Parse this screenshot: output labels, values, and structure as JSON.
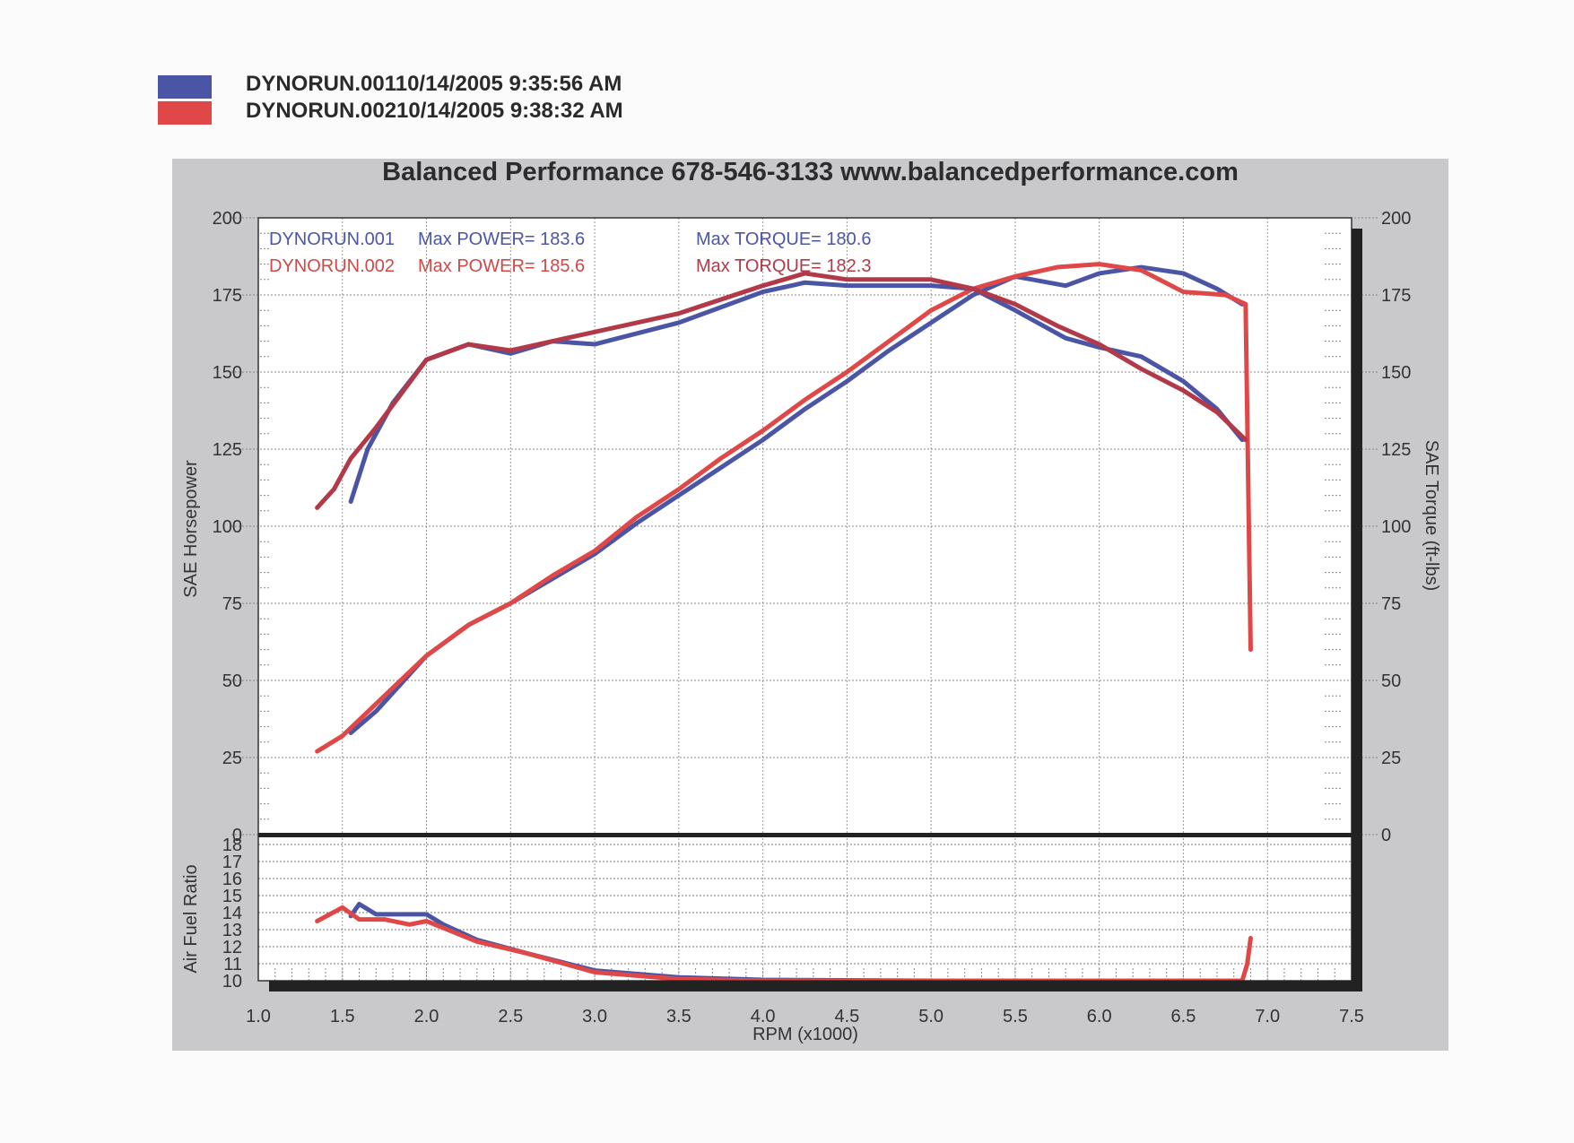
{
  "legend": [
    {
      "label": "DYNORUN.00110/14/2005 9:35:56 AM",
      "color": "#4b55a6"
    },
    {
      "label": "DYNORUN.00210/14/2005 9:38:32 AM",
      "color": "#e04848"
    }
  ],
  "title": "Balanced Performance 678-546-3133 www.balancedperformance.com",
  "annotations": {
    "run1_name": "DYNORUN.001",
    "run1_power": "Max POWER= 183.6",
    "run1_torque": "Max TORQUE= 180.6",
    "run2_name": "DYNORUN.002",
    "run2_power": "Max POWER= 185.6",
    "run2_torque": "Max TORQUE= 182.3"
  },
  "axes": {
    "left_label": "SAE Horsepower",
    "right_label": "SAE Torque (ft-lbs)",
    "afr_label": "Air Fuel Ratio",
    "x_label": "RPM (x1000)"
  },
  "chart_data": [
    {
      "type": "line",
      "title": "Balanced Performance 678-546-3133 www.balancedperformance.com",
      "xlabel": "RPM (x1000)",
      "ylabel": "SAE Horsepower",
      "y2label": "SAE Torque (ft-lbs)",
      "xlim": [
        1.0,
        7.5
      ],
      "ylim": [
        0,
        200
      ],
      "x_ticks": [
        "1.0",
        "1.5",
        "2.0",
        "2.5",
        "3.0",
        "3.5",
        "4.0",
        "4.5",
        "5.0",
        "5.5",
        "6.0",
        "6.5",
        "7.0",
        "7.5"
      ],
      "y_ticks": [
        "0",
        "25",
        "50",
        "75",
        "100",
        "125",
        "150",
        "175",
        "200"
      ],
      "grid": true,
      "series": [
        {
          "name": "DYNORUN.001 Horsepower",
          "color": "#4b55a6",
          "x": [
            1.55,
            1.7,
            1.9,
            2.0,
            2.25,
            2.5,
            2.75,
            3.0,
            3.25,
            3.5,
            3.75,
            4.0,
            4.25,
            4.5,
            4.75,
            5.0,
            5.25,
            5.5,
            5.8,
            6.0,
            6.25,
            6.5,
            6.7,
            6.85
          ],
          "y": [
            33,
            40,
            52,
            58,
            68,
            75,
            83,
            91,
            101,
            110,
            119,
            128,
            138,
            147,
            157,
            166,
            175,
            181,
            178,
            182,
            184,
            182,
            177,
            172
          ]
        },
        {
          "name": "DYNORUN.002 Horsepower",
          "color": "#e04848",
          "x": [
            1.35,
            1.5,
            1.75,
            2.0,
            2.25,
            2.5,
            2.75,
            3.0,
            3.25,
            3.5,
            3.75,
            4.0,
            4.25,
            4.5,
            4.75,
            5.0,
            5.25,
            5.5,
            5.75,
            6.0,
            6.25,
            6.5,
            6.75,
            6.87,
            6.9
          ],
          "y": [
            27,
            32,
            45,
            58,
            68,
            75,
            84,
            92,
            103,
            112,
            122,
            131,
            141,
            150,
            160,
            170,
            177,
            181,
            184,
            185,
            183,
            176,
            175,
            172,
            60
          ]
        },
        {
          "name": "DYNORUN.001 Torque",
          "color": "#4b55a6",
          "x": [
            1.55,
            1.65,
            1.8,
            2.0,
            2.25,
            2.5,
            2.75,
            3.0,
            3.5,
            4.0,
            4.25,
            4.5,
            5.0,
            5.25,
            5.5,
            5.8,
            6.0,
            6.25,
            6.5,
            6.7,
            6.85
          ],
          "y": [
            108,
            125,
            140,
            154,
            159,
            156,
            160,
            159,
            166,
            176,
            179,
            178,
            178,
            177,
            170,
            161,
            158,
            155,
            147,
            138,
            128
          ]
        },
        {
          "name": "DYNORUN.002 Torque",
          "color": "#b23a48",
          "x": [
            1.35,
            1.45,
            1.55,
            1.7,
            1.85,
            2.0,
            2.25,
            2.5,
            2.75,
            3.0,
            3.5,
            4.0,
            4.25,
            4.5,
            5.0,
            5.25,
            5.5,
            5.75,
            6.0,
            6.25,
            6.5,
            6.7,
            6.87
          ],
          "y": [
            106,
            112,
            122,
            132,
            143,
            154,
            159,
            157,
            160,
            163,
            169,
            178,
            182,
            180,
            180,
            177,
            172,
            165,
            159,
            151,
            144,
            137,
            128
          ]
        }
      ]
    },
    {
      "type": "line",
      "ylabel": "Air Fuel Ratio",
      "xlabel": "RPM (x1000)",
      "xlim": [
        1.0,
        7.5
      ],
      "ylim": [
        10,
        18
      ],
      "y_ticks": [
        "10",
        "11",
        "12",
        "13",
        "14",
        "15",
        "16",
        "17",
        "18"
      ],
      "grid": true,
      "series": [
        {
          "name": "DYNORUN.001 AFR",
          "color": "#4b55a6",
          "x": [
            1.55,
            1.6,
            1.7,
            1.8,
            2.0,
            2.1,
            2.3,
            2.6,
            3.0,
            3.5,
            4.0,
            5.0,
            6.0,
            6.85
          ],
          "y": [
            13.8,
            14.5,
            13.9,
            13.9,
            13.9,
            13.3,
            12.4,
            11.6,
            10.6,
            10.2,
            10.05,
            10.0,
            10.0,
            10.0
          ]
        },
        {
          "name": "DYNORUN.002 AFR",
          "color": "#e04848",
          "x": [
            1.35,
            1.5,
            1.6,
            1.75,
            1.9,
            2.0,
            2.1,
            2.3,
            2.6,
            3.0,
            3.5,
            4.0,
            5.0,
            6.0,
            6.85,
            6.88,
            6.9
          ],
          "y": [
            13.5,
            14.3,
            13.6,
            13.6,
            13.3,
            13.5,
            13.1,
            12.3,
            11.6,
            10.5,
            10.1,
            10.0,
            10.0,
            10.0,
            10.0,
            11.0,
            12.5
          ]
        }
      ]
    }
  ]
}
